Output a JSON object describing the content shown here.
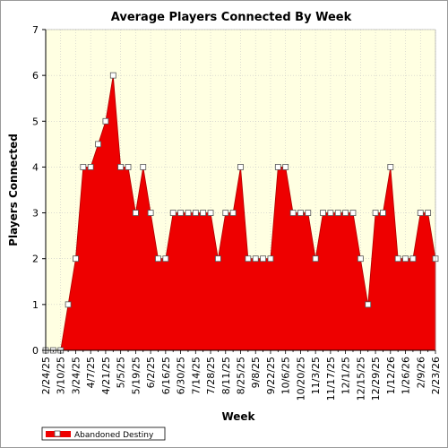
{
  "chart_data": {
    "type": "area",
    "title": "Average Players Connected By Week",
    "xlabel": "Week",
    "ylabel": "Players Connected",
    "ylim": [
      0,
      7
    ],
    "yticks": [
      0,
      1,
      2,
      3,
      4,
      5,
      6,
      7
    ],
    "grid": true,
    "legend": "bottom-left",
    "x_tick_labels": [
      "2/24/25",
      "3/10/25",
      "3/24/25",
      "4/7/25",
      "4/21/25",
      "5/5/25",
      "5/19/25",
      "6/2/25",
      "6/16/25",
      "6/30/25",
      "7/14/25",
      "7/28/25",
      "8/11/25",
      "8/25/25",
      "9/8/25",
      "9/22/25",
      "10/6/25",
      "10/20/25",
      "11/3/25",
      "11/17/25",
      "12/1/25",
      "12/15/25",
      "12/29/25",
      "1/12/26",
      "1/26/26",
      "2/9/26",
      "2/23/26"
    ],
    "x": [
      "2/24/25",
      "3/3/25",
      "3/10/25",
      "3/17/25",
      "3/24/25",
      "3/31/25",
      "4/7/25",
      "4/14/25",
      "4/21/25",
      "4/28/25",
      "5/5/25",
      "5/12/25",
      "5/19/25",
      "5/26/25",
      "6/2/25",
      "6/9/25",
      "6/16/25",
      "6/23/25",
      "6/30/25",
      "7/7/25",
      "7/14/25",
      "7/21/25",
      "7/28/25",
      "8/4/25",
      "8/11/25",
      "8/18/25",
      "8/25/25",
      "9/1/25",
      "9/8/25",
      "9/15/25",
      "9/22/25",
      "9/29/25",
      "10/6/25",
      "10/13/25",
      "10/20/25",
      "10/27/25",
      "11/3/25",
      "11/10/25",
      "11/17/25",
      "11/24/25",
      "12/1/25",
      "12/8/25",
      "12/15/25",
      "12/22/25",
      "12/29/25",
      "1/5/26",
      "1/12/26",
      "1/19/26",
      "1/26/26",
      "2/2/26",
      "2/9/26",
      "2/16/26",
      "2/23/26"
    ],
    "series": [
      {
        "name": "Abandoned Destiny",
        "color": "#ee0000",
        "values": [
          0,
          0,
          0,
          1,
          2,
          4,
          4,
          4.5,
          5,
          6,
          4,
          4,
          3,
          4,
          3,
          2,
          2,
          3,
          3,
          3,
          3,
          3,
          3,
          2,
          3,
          3,
          4,
          2,
          2,
          2,
          2,
          4,
          4,
          3,
          3,
          3,
          2,
          3,
          3,
          3,
          3,
          3,
          2,
          1,
          3,
          3,
          4,
          2,
          2,
          2,
          3,
          3,
          2
        ]
      }
    ]
  }
}
